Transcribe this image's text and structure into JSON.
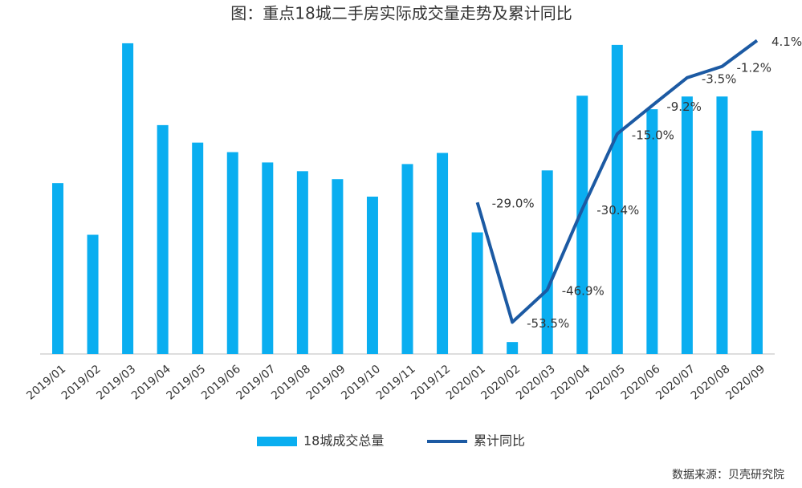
{
  "chart_data": {
    "type": "bar_line",
    "title": "图：重点18城二手房实际成交量走势及累计同比",
    "source": "数据来源：贝壳研究院",
    "categories": [
      "2019/01",
      "2019/02",
      "2019/03",
      "2019/04",
      "2019/05",
      "2019/06",
      "2019/07",
      "2019/08",
      "2019/09",
      "2019/10",
      "2019/11",
      "2019/12",
      "2020/01",
      "2020/02",
      "2020/03",
      "2020/04",
      "2020/05",
      "2020/06",
      "2020/07",
      "2020/08",
      "2020/09"
    ],
    "ylim": [
      0,
      400
    ],
    "y2lim": [
      -60,
      5
    ],
    "series": [
      {
        "name": "18城成交总量",
        "type": "bar",
        "color": "#0aaef0",
        "values": [
          215,
          150,
          391,
          288,
          266,
          254,
          241,
          230,
          220,
          198,
          239,
          253,
          153,
          15,
          231,
          325,
          389,
          308,
          324,
          324,
          281
        ]
      },
      {
        "name": "累计同比",
        "type": "line",
        "axis": "y2",
        "color": "#1c5aa3",
        "values": [
          null,
          null,
          null,
          null,
          null,
          null,
          null,
          null,
          null,
          null,
          null,
          null,
          -29.0,
          -53.5,
          -46.9,
          -30.4,
          -15.0,
          -9.2,
          -3.5,
          -1.2,
          4.1
        ],
        "value_labels": [
          null,
          null,
          null,
          null,
          null,
          null,
          null,
          null,
          null,
          null,
          null,
          null,
          "-29.0%",
          "-53.5%",
          "-46.9%",
          "-30.4%",
          "-15.0%",
          "-9.2%",
          "-3.5%",
          "-1.2%",
          "4.1%"
        ]
      }
    ]
  }
}
